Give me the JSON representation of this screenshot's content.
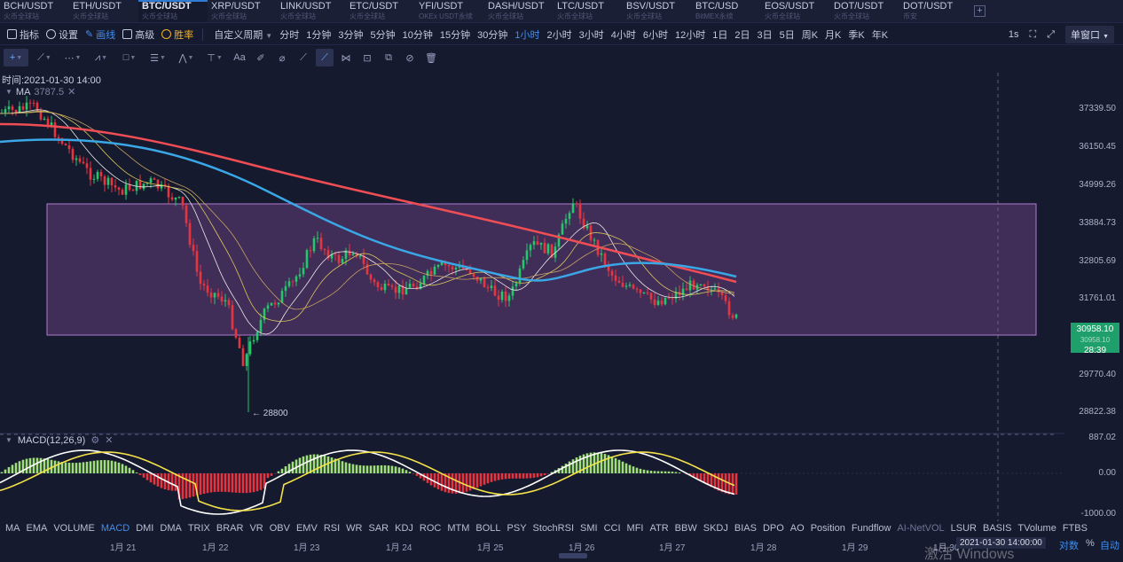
{
  "symbol_tabs": [
    {
      "name": "BCH/USDT",
      "sub": "火币全球站"
    },
    {
      "name": "ETH/USDT",
      "sub": "火币全球站"
    },
    {
      "name": "BTC/USDT",
      "sub": "火币全球站"
    },
    {
      "name": "XRP/USDT",
      "sub": "火币全球站"
    },
    {
      "name": "LINK/USDT",
      "sub": "火币全球站"
    },
    {
      "name": "ETC/USDT",
      "sub": "火币全球站"
    },
    {
      "name": "YFI/USDT",
      "sub": "OKEx USDT永续"
    },
    {
      "name": "DASH/USDT",
      "sub": "火币全球站"
    },
    {
      "name": "LTC/USDT",
      "sub": "火币全球站"
    },
    {
      "name": "BSV/USDT",
      "sub": "火币全球站"
    },
    {
      "name": "BTC/USD",
      "sub": "BitMEX永续"
    },
    {
      "name": "EOS/USDT",
      "sub": "火币全球站"
    },
    {
      "name": "DOT/USDT",
      "sub": "火币全球站"
    },
    {
      "name": "DOT/USDT",
      "sub": "币安"
    }
  ],
  "toolbar": {
    "indicator": "指标",
    "settings": "设置",
    "draw": "画线",
    "advanced": "高级",
    "winrate": "胜率",
    "custom_period": "自定义周期",
    "periods": [
      "分时",
      "1分钟",
      "3分钟",
      "5分钟",
      "10分钟",
      "15分钟",
      "30分钟",
      "1小时",
      "2小时",
      "3小时",
      "4小时",
      "6小时",
      "12小时",
      "1日",
      "2日",
      "3日",
      "5日",
      "周K",
      "月K",
      "季K",
      "年K"
    ],
    "active_period": "1小时",
    "refresh": "1s",
    "window_mode": "单窗口"
  },
  "draw_tools": [
    "crosshair",
    "trend-line",
    "ray",
    "fib",
    "rectangle",
    "parallel",
    "pattern",
    "measure",
    "text",
    "brush",
    "eraser",
    "magnet",
    "lock",
    "hide",
    "clone",
    "trash"
  ],
  "chart": {
    "time_label": "时间:2021-01-30 14:00",
    "ma_label": "MA",
    "ma_value": "3787.5",
    "macd_label": "MACD(12,26,9)",
    "low_marker": "← 28800",
    "price_axis": [
      "37339.50",
      "36150.45",
      "34999.26",
      "33884.73",
      "32805.69",
      "31761.01",
      "29770.40",
      "28822.38"
    ],
    "current_price": "30958.10",
    "current_price_faint": "30958.10",
    "countdown": "28:39",
    "macd_axis": [
      "887.02",
      "0.00",
      "-1000.00"
    ],
    "dates": [
      "1月 21",
      "1月 22",
      "1月 23",
      "1月 24",
      "1月 25",
      "1月 26",
      "1月 27",
      "1月 28",
      "1月 29",
      "1月 30",
      "31"
    ],
    "cursor_time": "2021-01-30 14:00:00",
    "axis_log": "对数",
    "axis_pct": "%",
    "axis_auto": "自动",
    "colors": {
      "up": "#26c76a",
      "down": "#e8343f",
      "ma_slow": "#f04d55",
      "ma_mid": "#3aa7e6",
      "zone": "#8a4f9e"
    }
  },
  "indicators": [
    "MA",
    "EMA",
    "VOLUME",
    "MACD",
    "DMI",
    "DMA",
    "TRIX",
    "BRAR",
    "VR",
    "OBV",
    "EMV",
    "RSI",
    "WR",
    "SAR",
    "KDJ",
    "ROC",
    "MTM",
    "BOLL",
    "PSY",
    "StochRSI",
    "SMI",
    "CCI",
    "MFI",
    "ATR",
    "BBW",
    "SKDJ",
    "BIAS",
    "DPO",
    "AO",
    "Position",
    "Fundflow",
    "AI-NetVOL",
    "LSUR",
    "BASIS",
    "TVolume",
    "FTBS"
  ],
  "active_indicator": "MACD",
  "dim_indicator": "AI-NetVOL",
  "watermark": "激活 Windows"
}
